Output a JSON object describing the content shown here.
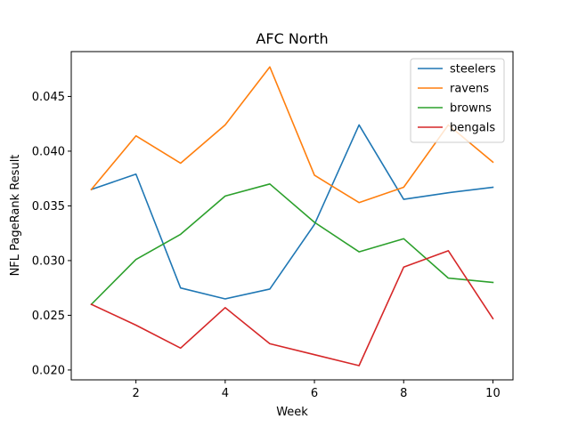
{
  "chart_data": {
    "type": "line",
    "title": "AFC North",
    "xlabel": "Week",
    "ylabel": "NFL PageRank Result",
    "xlim": [
      0.55,
      10.45
    ],
    "ylim": [
      0.0191,
      0.0491
    ],
    "xticks": [
      2,
      4,
      6,
      8,
      10
    ],
    "xtick_labels": [
      "2",
      "4",
      "6",
      "8",
      "10"
    ],
    "yticks": [
      0.02,
      0.025,
      0.03,
      0.035,
      0.04,
      0.045
    ],
    "ytick_labels": [
      "0.020",
      "0.025",
      "0.030",
      "0.035",
      "0.040",
      "0.045"
    ],
    "grid": false,
    "legend_position": "top-right",
    "x": [
      1,
      2,
      3,
      4,
      5,
      6,
      7,
      8,
      9,
      10
    ],
    "series": [
      {
        "name": "steelers",
        "color": "#1f77b4",
        "values": [
          0.0365,
          0.0379,
          0.0275,
          0.0265,
          0.0274,
          0.0333,
          0.0424,
          0.0356,
          0.0362,
          0.0367
        ]
      },
      {
        "name": "ravens",
        "color": "#ff7f0e",
        "values": [
          0.0365,
          0.0414,
          0.0389,
          0.0424,
          0.0477,
          0.0378,
          0.0353,
          0.0367,
          0.0424,
          0.039
        ]
      },
      {
        "name": "browns",
        "color": "#2ca02c",
        "values": [
          0.026,
          0.0301,
          0.0324,
          0.0359,
          0.037,
          0.0335,
          0.0308,
          0.032,
          0.0284,
          0.028
        ]
      },
      {
        "name": "bengals",
        "color": "#d62728",
        "values": [
          0.026,
          0.0241,
          0.022,
          0.0257,
          0.0224,
          0.0214,
          0.0204,
          0.0294,
          0.0309,
          0.0247
        ]
      }
    ]
  }
}
